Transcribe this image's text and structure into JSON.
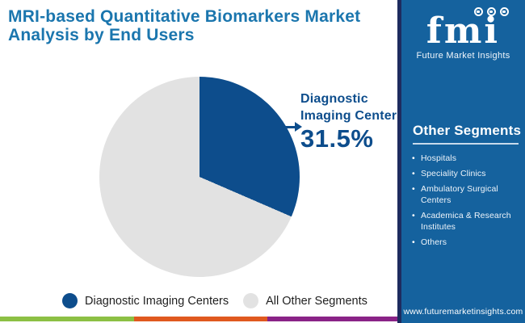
{
  "title": "MRI-based Quantitative Biomarkers Market Analysis by End Users",
  "chart_data": {
    "type": "pie",
    "title": "MRI-based Quantitative Biomarkers Market Analysis by End Users",
    "slices": [
      {
        "label": "Diagnostic Imaging Centers",
        "value": 31.5,
        "color": "#0d4d8c"
      },
      {
        "label": "All Other Segments",
        "value": 68.5,
        "color": "#e2e2e2"
      }
    ],
    "start_angle_deg": 0,
    "direction": "clockwise",
    "legend_position": "bottom",
    "annotation": {
      "line1": "Diagnostic",
      "line2": "Imaging Centers",
      "value": "31.5%"
    }
  },
  "sidebar": {
    "logo": {
      "text": "fmi",
      "subtitle": "Future Market Insights",
      "icons": [
        "globe-americas-icon",
        "globe-africa-icon",
        "globe-asia-icon"
      ]
    },
    "heading": "Other Segments",
    "items": [
      "Hospitals",
      "Speciality Clinics",
      "Ambulatory Surgical Centers",
      "Academica & Research Institutes",
      "Others"
    ],
    "website": "www.futuremarketinsights.com"
  },
  "colors": {
    "title_text": "#1b76ae",
    "accent": "#0d4d8c",
    "pie_other": "#e2e2e2",
    "sidebar_bg": "#15629e",
    "sidebar_strip": "#1e2b5f",
    "footer_bar": [
      "#8cc044",
      "#e0591f",
      "#8a2387"
    ]
  }
}
